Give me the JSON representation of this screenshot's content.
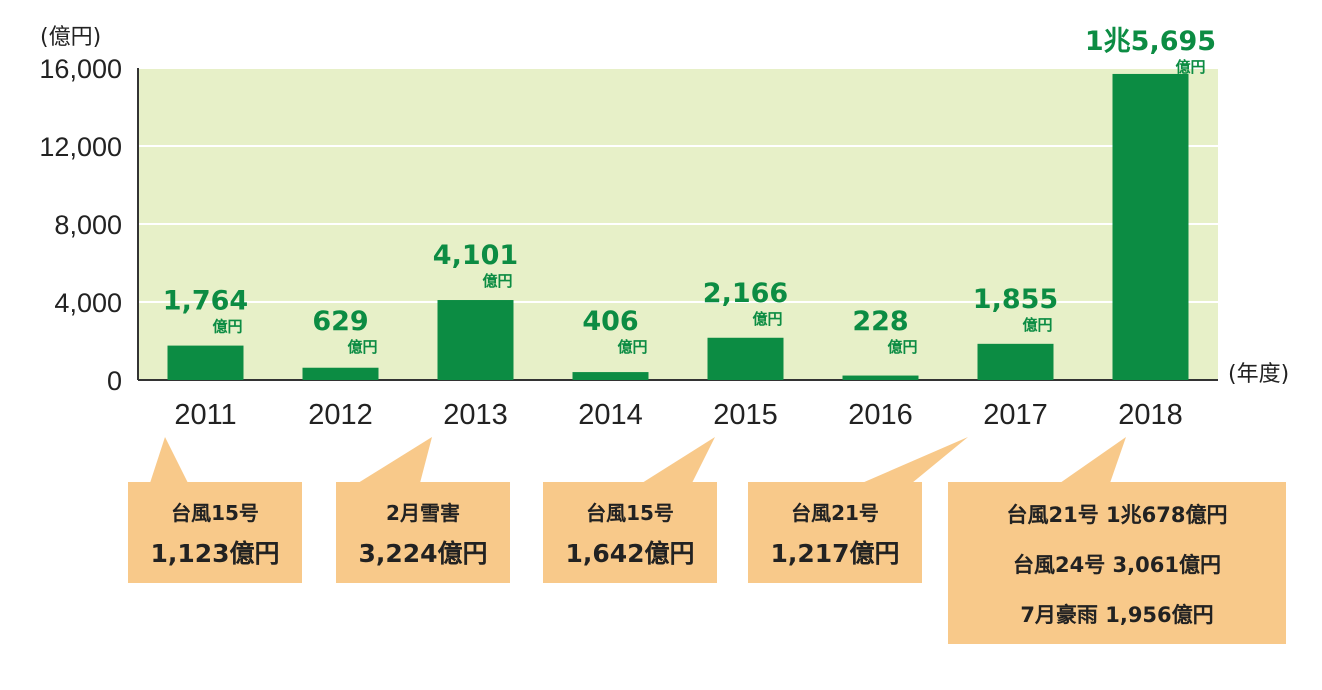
{
  "colors": {
    "plot_bg": "#e7f0c8",
    "bar": "#0c8c43",
    "value_label": "#0c8c43",
    "callout_bg": "#f8c98a",
    "axis": "#333333",
    "grid": "#ffffff"
  },
  "chart_data": {
    "type": "bar",
    "y_unit_label": "(億円)",
    "x_unit_label": "(年度)",
    "ylim": [
      0,
      16000
    ],
    "yticks": [
      "0",
      "4,000",
      "8,000",
      "12,000",
      "16,000"
    ],
    "ytick_values": [
      0,
      4000,
      8000,
      12000,
      16000
    ],
    "grid": true,
    "categories": [
      "2011",
      "2012",
      "2013",
      "2014",
      "2015",
      "2016",
      "2017",
      "2018"
    ],
    "values": [
      1764,
      629,
      4101,
      406,
      2166,
      228,
      1855,
      15695
    ],
    "value_labels": [
      "1,764",
      "629",
      "4,101",
      "406",
      "2,166",
      "228",
      "1,855",
      "1兆5,695"
    ],
    "value_unit": "億円"
  },
  "callouts": [
    {
      "year": "2011",
      "lines": [
        "台風15号",
        "1,123億円"
      ]
    },
    {
      "year": "2013",
      "lines": [
        "2月雪害",
        "3,224億円"
      ]
    },
    {
      "year": "2015",
      "lines": [
        "台風15号",
        "1,642億円"
      ]
    },
    {
      "year": "2017",
      "lines": [
        "台風21号",
        "1,217億円"
      ]
    },
    {
      "year": "2018",
      "lines": [
        "台風21号 1兆678億円",
        "台風24号 3,061億円",
        "7月豪雨 1,956億円"
      ]
    }
  ]
}
